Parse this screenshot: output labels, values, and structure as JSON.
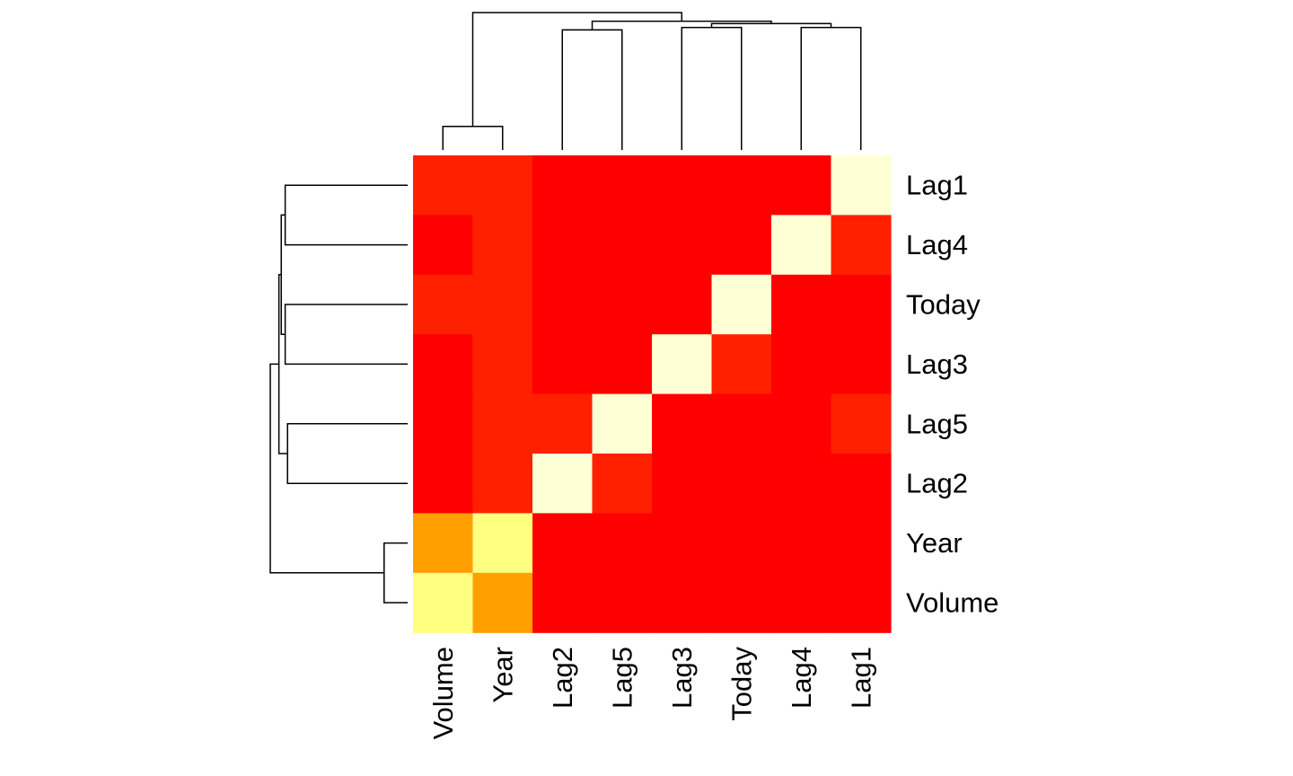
{
  "chart_data": {
    "type": "heatmap",
    "title": "",
    "xlabel": "",
    "ylabel": "",
    "columns": [
      "Volume",
      "Year",
      "Lag2",
      "Lag5",
      "Lag3",
      "Today",
      "Lag4",
      "Lag1"
    ],
    "rows_top_to_bottom": [
      "Lag1",
      "Lag4",
      "Today",
      "Lag3",
      "Lag5",
      "Lag2",
      "Year",
      "Volume"
    ],
    "color_scale": "heat.colors (red = low, pale yellow = high)",
    "values": [
      [
        0.04,
        0.04,
        0.0,
        0.0,
        0.0,
        0.0,
        0.0,
        1.0
      ],
      [
        0.0,
        0.04,
        0.0,
        0.0,
        0.0,
        0.0,
        1.0,
        0.04
      ],
      [
        0.04,
        0.04,
        0.0,
        0.0,
        0.0,
        1.0,
        0.0,
        0.0
      ],
      [
        0.0,
        0.04,
        0.0,
        0.0,
        1.0,
        0.04,
        0.0,
        0.0
      ],
      [
        0.0,
        0.04,
        0.04,
        1.0,
        0.0,
        0.0,
        0.0,
        0.04
      ],
      [
        0.0,
        0.04,
        1.0,
        0.04,
        0.0,
        0.0,
        0.0,
        0.0
      ],
      [
        0.33,
        0.95,
        0.0,
        0.0,
        0.0,
        0.0,
        0.0,
        0.0
      ],
      [
        0.95,
        0.33,
        0.0,
        0.0,
        0.0,
        0.0,
        0.0,
        0.0
      ]
    ],
    "colors": {
      "low": "#FF0000",
      "near_low": "#FF2000",
      "mid": "#FF9F00",
      "high": "#FFFF80",
      "diagonal": "#FFFFD5"
    },
    "column_dendrogram": [
      {
        "left": "Volume",
        "right": "Year",
        "height": 0.13
      },
      {
        "left": "Lag2",
        "right": "Lag5",
        "height": 0.253
      },
      {
        "left": "Lag3",
        "right": "Today",
        "height": 0.256
      },
      {
        "left": "Lag4",
        "right": "Lag1",
        "height": 0.256
      },
      {
        "left": "Lag3-Today",
        "right": "Lag4-Lag1",
        "height": 0.261
      },
      {
        "left": "Lag2-Lag5",
        "right": "Lag3-Today-Lag4-Lag1",
        "height": 0.264
      },
      {
        "left": "Volume-Year",
        "right": "Lag2-Lag5-Lag3-Today-Lag4-Lag1",
        "height": 0.275
      }
    ],
    "row_dendrogram": [
      {
        "top": "Lag1",
        "bottom": "Lag4",
        "height": 0.256
      },
      {
        "top": "Today",
        "bottom": "Lag3",
        "height": 0.256
      },
      {
        "top": "Lag5",
        "bottom": "Lag2",
        "height": 0.253
      },
      {
        "top": "Lag1-Lag4",
        "bottom": "Today-Lag3",
        "height": 0.261
      },
      {
        "top": "Lag1-Lag4-Today-Lag3",
        "bottom": "Lag5-Lag2",
        "height": 0.264
      },
      {
        "top": "Year",
        "bottom": "Volume",
        "height": 0.13
      },
      {
        "top": "Lag1-Lag4-Today-Lag3-Lag5-Lag2",
        "bottom": "Year-Volume",
        "height": 0.275
      }
    ]
  }
}
